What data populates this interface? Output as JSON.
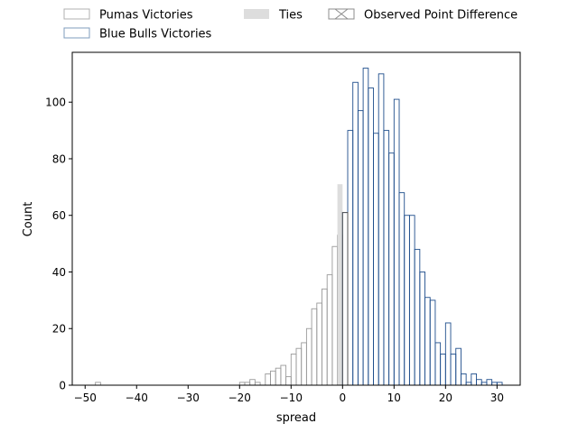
{
  "chart_data": {
    "type": "bar",
    "title": "",
    "xlabel": "spread",
    "ylabel": "Count",
    "xlim": [
      -52.5,
      34.5
    ],
    "ylim": [
      0,
      117.6
    ],
    "xticks": [
      -50,
      -40,
      -30,
      -20,
      -10,
      0,
      10,
      20,
      30
    ],
    "yticks": [
      0,
      20,
      40,
      60,
      80,
      100
    ],
    "bin_width": 1,
    "grid": false,
    "legend": {
      "placement": "top-outside",
      "entries": [
        {
          "label": "Pumas Victories",
          "style": "outline",
          "color": "#b0b0b0"
        },
        {
          "label": "Blue Bulls Victories",
          "style": "outline",
          "color": "#7f9cbd"
        },
        {
          "label": "Ties",
          "style": "filled",
          "color": "#dddddd"
        },
        {
          "label": "Observed Point Difference",
          "style": "hatched",
          "color": "#8c8c8c"
        }
      ]
    },
    "series": [
      {
        "role": "pumas",
        "stroke": "#9a9a9a",
        "x": [
          -48,
          -20,
          -19,
          -18,
          -17,
          -15,
          -14,
          -13,
          -12,
          -11,
          -10,
          -9,
          -8,
          -7,
          -6,
          -5,
          -4,
          -3,
          -2,
          -1
        ],
        "values": [
          1,
          1,
          1,
          2,
          1,
          4,
          5,
          6,
          7,
          3,
          11,
          13,
          15,
          20,
          27,
          29,
          34,
          39,
          49,
          53
        ]
      },
      {
        "role": "ties",
        "fill": "#dddddd",
        "x": [
          -1
        ],
        "values": [
          71
        ]
      },
      {
        "role": "blue_bulls",
        "stroke": "#1f4e8c",
        "x": [
          0,
          1,
          2,
          3,
          4,
          5,
          6,
          7,
          8,
          9,
          10,
          11,
          12,
          13,
          14,
          15,
          16,
          17,
          18,
          19,
          20,
          21,
          22,
          23,
          24,
          25,
          26,
          27,
          28,
          29,
          30
        ],
        "values": [
          61,
          90,
          107,
          97,
          112,
          105,
          89,
          110,
          90,
          82,
          101,
          68,
          60,
          60,
          48,
          40,
          31,
          30,
          15,
          11,
          22,
          11,
          13,
          4,
          1,
          4,
          2,
          1,
          2,
          1,
          1
        ]
      }
    ],
    "observed": {
      "x": 0,
      "value": 61
    }
  }
}
